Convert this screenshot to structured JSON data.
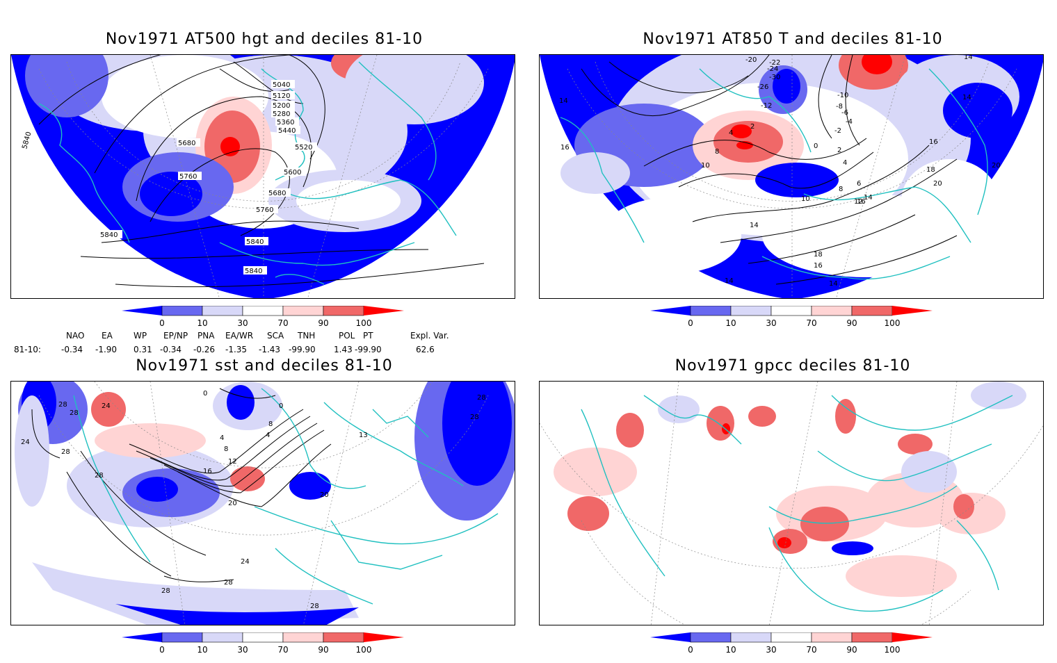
{
  "panels": [
    {
      "id": "panel-500hgt",
      "title": "Nov1971 AT500 hgt and deciles 81-10",
      "contour_labels": [
        "5040",
        "5120",
        "5200",
        "5280",
        "5360",
        "5440",
        "5520",
        "5600",
        "5680",
        "5760",
        "5840",
        "5680",
        "5760",
        "5840",
        "5840",
        "5840"
      ]
    },
    {
      "id": "panel-850t",
      "title": "Nov1971 AT850 T and deciles 81-10",
      "contour_labels": [
        "-20",
        "-22",
        "-24",
        "-26",
        "-28",
        "-30",
        "-12",
        "-10",
        "-8",
        "-6",
        "-4",
        "-2",
        "0",
        "2",
        "4",
        "8",
        "10",
        "14",
        "16",
        "18",
        "20",
        "12",
        "14",
        "16",
        "20",
        "18",
        "16",
        "14",
        "14",
        "14",
        "14",
        "14",
        "16",
        "6",
        "8",
        "10",
        "4",
        "2"
      ]
    },
    {
      "id": "panel-sst",
      "title": "Nov1971 sst and deciles 81-10",
      "contour_labels": [
        "28",
        "24",
        "28",
        "28",
        "24",
        "0",
        "0",
        "4",
        "8",
        "12",
        "16",
        "20",
        "24",
        "28",
        "28",
        "28",
        "28",
        "20",
        "4",
        "8",
        "13",
        "28",
        "28"
      ]
    },
    {
      "id": "panel-gpcc",
      "title": "Nov1971 gpcc deciles 81-10",
      "contour_labels": []
    }
  ],
  "colorbar": {
    "tick_labels": [
      "0",
      "10",
      "30",
      "70",
      "90",
      "100"
    ],
    "colors": [
      "#0000ff",
      "#6868f0",
      "#d8d8f8",
      "#ffffff",
      "#ffd4d4",
      "#f06868",
      "#ff0000"
    ]
  },
  "indices": {
    "headers": [
      "NAO",
      "EA",
      "WP",
      "EP/NP",
      "PNA",
      "EA/WR",
      "SCA",
      "TNH",
      "POL",
      "PT",
      "Expl. Var."
    ],
    "row_label": "81-10:",
    "values": [
      "-0.34",
      "-1.90",
      "0.31",
      "-0.34",
      "-0.26",
      "-1.35",
      "-1.43",
      "-99.90",
      "1.43",
      "-99.90",
      "62.6"
    ]
  },
  "map_colors": {
    "land_outline": "#20c0c0",
    "contour": "#000000",
    "grid": "#888888"
  }
}
